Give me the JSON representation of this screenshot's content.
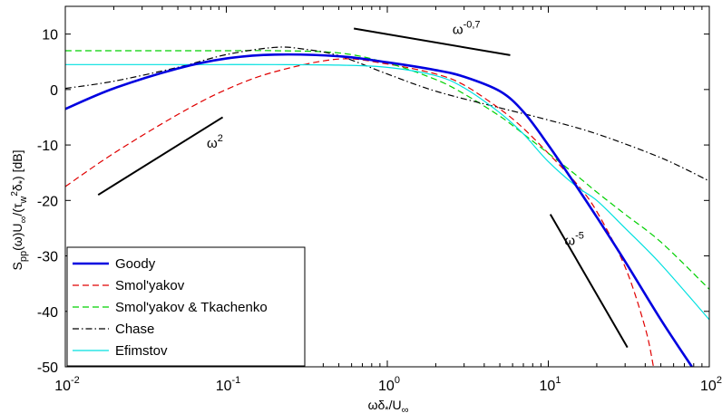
{
  "chart_data": {
    "type": "line",
    "title": "",
    "xlabel": "ωδ*/U∞",
    "ylabel": "Spp(ω)U∞/(τw²δ*) [dB]",
    "xscale": "log",
    "xlim": [
      0.01,
      100
    ],
    "ylim": [
      -50,
      15
    ],
    "grid": false,
    "legend_position": "bottom-left",
    "x_ticks": [
      {
        "value": 0.01,
        "base": "10",
        "exp": "-2"
      },
      {
        "value": 0.1,
        "base": "10",
        "exp": "-1"
      },
      {
        "value": 1,
        "base": "10",
        "exp": "0"
      },
      {
        "value": 10,
        "base": "10",
        "exp": "1"
      },
      {
        "value": 100,
        "base": "10",
        "exp": "2"
      }
    ],
    "y_ticks": [
      10,
      0,
      -10,
      -20,
      -30,
      -40,
      -50
    ],
    "series": [
      {
        "name": "Goody",
        "color": "#0000e0",
        "dash": "solid",
        "width": "thick",
        "x": [
          0.01,
          0.02,
          0.05,
          0.1,
          0.2,
          0.5,
          1,
          2,
          3,
          5,
          7,
          10,
          15,
          20,
          30,
          50,
          78
        ],
        "y": [
          -3.5,
          0.2,
          3.8,
          5.6,
          6.3,
          6.0,
          4.9,
          3.5,
          2.3,
          -0.3,
          -4.0,
          -10.0,
          -17.5,
          -23.0,
          -31.0,
          -41.5,
          -50.0
        ]
      },
      {
        "name": "Smol'yakov",
        "color": "#e00000",
        "dash": "dashed",
        "width": "thin",
        "x": [
          0.01,
          0.02,
          0.05,
          0.1,
          0.2,
          0.5,
          1,
          2,
          3,
          5,
          7,
          10,
          15,
          20,
          30,
          40,
          45
        ],
        "y": [
          -17.5,
          -11.5,
          -4.5,
          0.0,
          3.2,
          5.5,
          4.6,
          2.8,
          0.8,
          -3.5,
          -7.0,
          -11.5,
          -17.0,
          -22.0,
          -32.0,
          -43.0,
          -50.0
        ]
      },
      {
        "name": "Smol'yakov & Tkachenko",
        "color": "#00d000",
        "dash": "dashed",
        "width": "thin",
        "x": [
          0.01,
          0.05,
          0.1,
          0.2,
          0.5,
          1,
          2,
          3,
          5,
          7,
          10,
          15,
          20,
          30,
          50,
          100
        ],
        "y": [
          7.0,
          7.0,
          7.0,
          7.0,
          6.6,
          4.8,
          1.8,
          -0.8,
          -4.8,
          -8.0,
          -11.5,
          -15.5,
          -18.5,
          -22.5,
          -27.5,
          -36.0
        ]
      },
      {
        "name": "Chase",
        "color": "#000000",
        "dash": "dashdot",
        "width": "thin",
        "x": [
          0.01,
          0.02,
          0.05,
          0.1,
          0.2,
          0.3,
          0.5,
          1,
          2,
          5,
          10,
          20,
          50,
          100
        ],
        "y": [
          0.2,
          1.5,
          4.0,
          6.3,
          7.6,
          7.3,
          6.1,
          2.8,
          -0.3,
          -3.3,
          -5.5,
          -8.0,
          -12.3,
          -16.5
        ]
      },
      {
        "name": "Efimstov",
        "color": "#00e0e0",
        "dash": "solid",
        "width": "thin",
        "x": [
          0.01,
          0.05,
          0.1,
          0.2,
          0.5,
          1,
          2,
          3,
          5,
          7,
          10,
          15,
          20,
          30,
          50,
          100
        ],
        "y": [
          4.5,
          4.5,
          4.5,
          4.5,
          4.4,
          4.0,
          2.5,
          0.3,
          -4.2,
          -8.0,
          -13.0,
          -17.5,
          -20.0,
          -25.0,
          -31.5,
          -41.5
        ]
      }
    ],
    "slope_lines": [
      {
        "label_base": "ω",
        "label_exp": "2",
        "x": [
          0.016,
          0.095
        ],
        "y": [
          -19.0,
          -5.0
        ],
        "label_x": 0.085,
        "label_y": -10.5
      },
      {
        "label_base": "ω",
        "label_exp": "-0,7",
        "x": [
          0.62,
          5.8
        ],
        "y": [
          11.0,
          6.2
        ],
        "label_x": 3.1,
        "label_y": 10.0
      },
      {
        "label_base": "ω",
        "label_exp": "-5",
        "x": [
          10.3,
          31.0
        ],
        "y": [
          -22.5,
          -46.5
        ],
        "label_x": 14.5,
        "label_y": -28.0
      }
    ]
  }
}
